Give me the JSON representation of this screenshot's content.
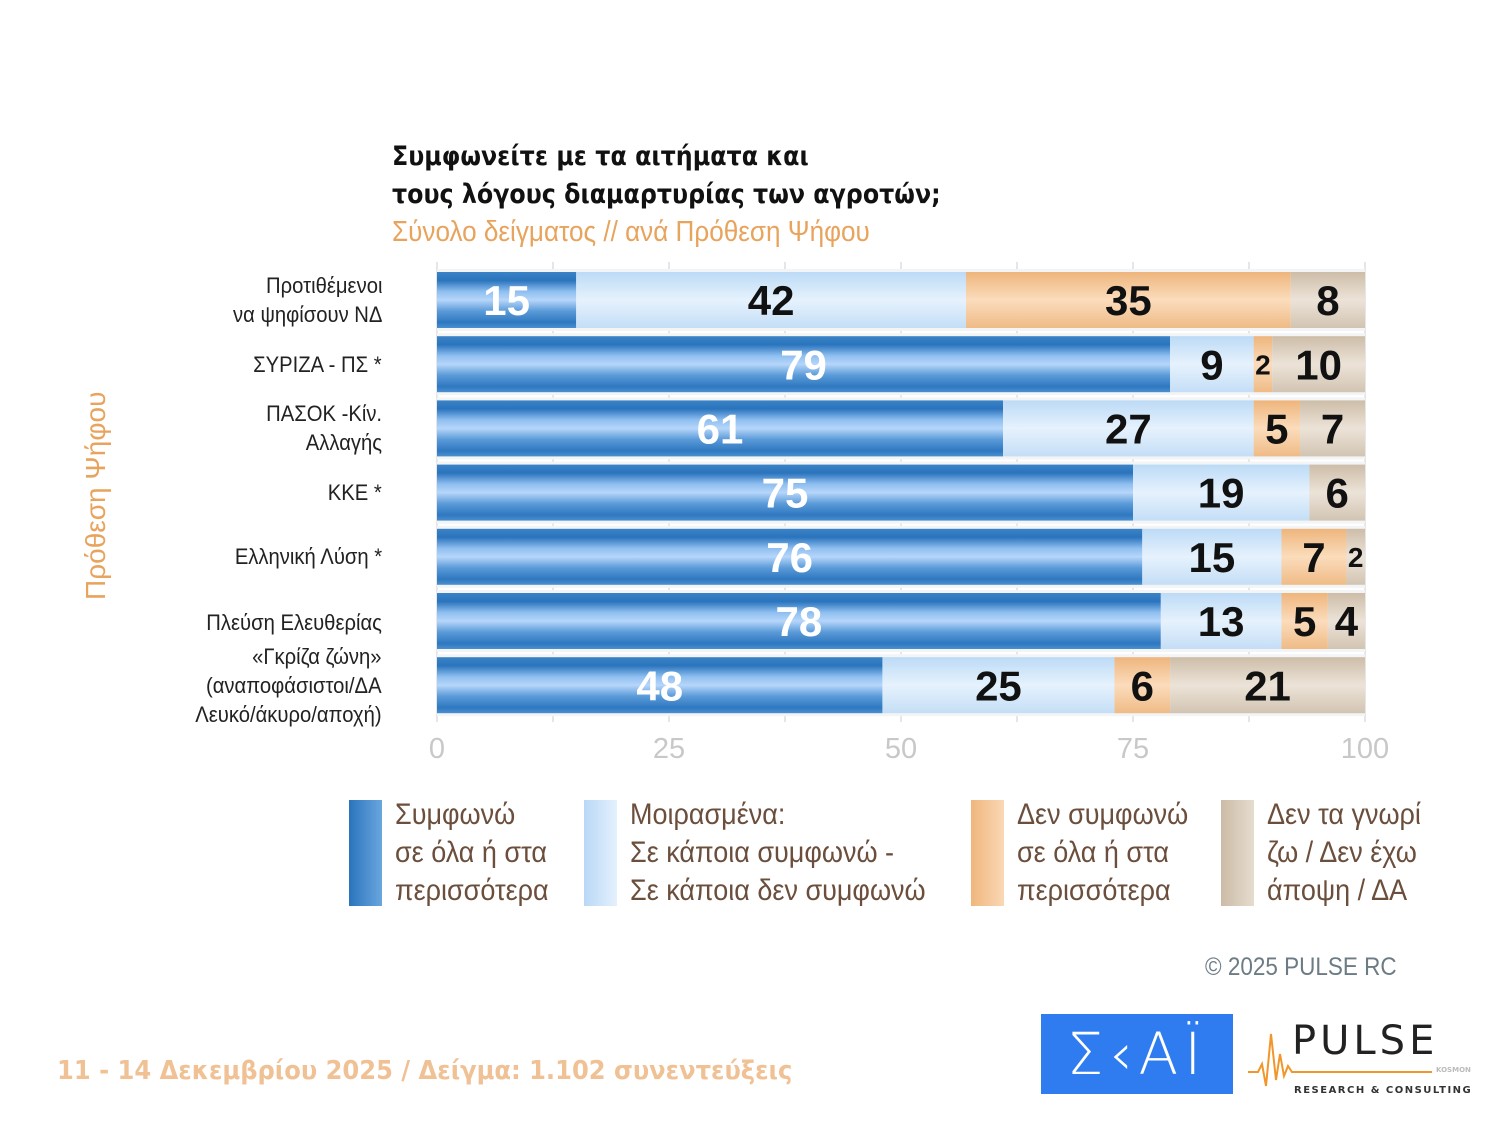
{
  "title_lines": [
    "Συμφωνείτε με τα αιτήματα και",
    "τους λόγους διαμαρτυρίας των αγροτών;"
  ],
  "subtitle": "Σύνολο δείγματος // ανά Πρόθεση Ψήφου",
  "y_axis_title": "Πρόθεση Ψήφου",
  "chart_data": {
    "type": "bar",
    "orientation": "horizontal",
    "stacked": true,
    "title": "Συμφωνείτε με τα αιτήματα και τους λόγους διαμαρτυρίας των αγροτών;",
    "subtitle": "Σύνολο δείγματος // ανά Πρόθεση Ψήφου",
    "ylabel": "Πρόθεση Ψήφου",
    "xlim": [
      0,
      100
    ],
    "xticks": [
      "0",
      "25",
      "50",
      "75",
      "100"
    ],
    "grid": true,
    "legend_position": "bottom",
    "categories": [
      [
        "Προτιθέμενοι",
        "να ψηφίσουν ΝΔ"
      ],
      [
        "ΣΥΡΙΖΑ - ΠΣ *"
      ],
      [
        "ΠΑΣΟΚ -Κίν.",
        "Αλλαγής"
      ],
      [
        "ΚΚΕ *"
      ],
      [
        "Ελληνική Λύση *"
      ],
      [
        "Πλεύση Ελευθερίας"
      ],
      [
        "«Γκρίζα ζώνη»",
        "(αναποφάσιστοι/ΔΑ",
        "Λευκό/άκυρο/αποχή)"
      ]
    ],
    "series": [
      {
        "name": "Συμφωνώ σε όλα ή στα περισσότερα",
        "legend_lines": [
          "Συμφωνώ",
          "σε όλα ή στα",
          "περισσότερα"
        ],
        "color": "#3a86c8",
        "label_color": "#ffffff",
        "values": [
          15,
          79,
          61,
          75,
          76,
          78,
          48
        ]
      },
      {
        "name": "Μοιρασμένα: Σε κάποια συμφωνώ - Σε κάποια δεν συμφωνώ",
        "legend_lines": [
          "Μοιρασμένα:",
          "Σε κάποια συμφωνώ -",
          "Σε κάποια δεν συμφωνώ"
        ],
        "color": "#cfe5f8",
        "label_color": "#111111",
        "values": [
          42,
          9,
          27,
          19,
          15,
          13,
          25
        ]
      },
      {
        "name": "Δεν συμφωνώ σε όλα ή στα περισσότερα",
        "legend_lines": [
          "Δεν συμφωνώ",
          "σε όλα ή στα",
          "περισσότερα"
        ],
        "color": "#f2c394",
        "label_color": "#111111",
        "values": [
          35,
          2,
          5,
          0,
          7,
          5,
          6
        ]
      },
      {
        "name": "Δεν τα γνωρίζω / Δεν έχω άποψη / ΔΑ",
        "legend_lines": [
          "Δεν τα γνωρί",
          "ζω / Δεν έχω",
          "άποψη / ΔΑ"
        ],
        "color": "#d8cbbb",
        "label_color": "#111111",
        "values": [
          8,
          10,
          7,
          6,
          2,
          4,
          21
        ]
      }
    ]
  },
  "copyright": "©  2025  PULSE RC",
  "footer": "11 - 14 Δεκεμβρίου 2025  /  Δείγμα:  1.102 συνεντεύξεις",
  "logos": {
    "skai": "ΣΚΑΪ",
    "pulse": "PULSE",
    "pulse_sub": "RESEARCH & CONSULTING",
    "pulse_tag": "KOSMON"
  }
}
